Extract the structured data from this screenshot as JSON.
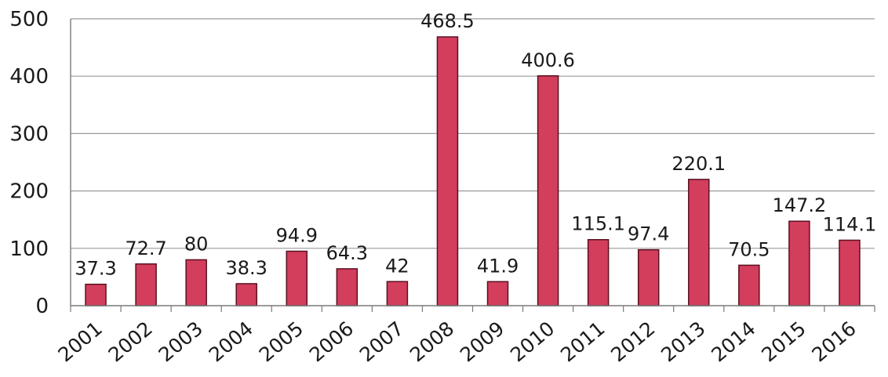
{
  "chart_data": {
    "type": "bar",
    "categories": [
      "2001",
      "2002",
      "2003",
      "2004",
      "2005",
      "2006",
      "2007",
      "2008",
      "2009",
      "2010",
      "2011",
      "2012",
      "2013",
      "2014",
      "2015",
      "2016"
    ],
    "values": [
      37.3,
      72.7,
      80,
      38.3,
      94.9,
      64.3,
      42,
      468.5,
      41.9,
      400.6,
      115.1,
      97.4,
      220.1,
      70.5,
      147.2,
      114.1
    ],
    "data_labels": [
      "37.3",
      "72.7",
      "80",
      "38.3",
      "94.9",
      "64.3",
      "42",
      "468.5",
      "41.9",
      "400.6",
      "115.1",
      "97.4",
      "220.1",
      "70.5",
      "147.2",
      "114.1"
    ],
    "y_ticks": [
      0,
      100,
      200,
      300,
      400,
      500
    ],
    "ylim": [
      0,
      500
    ],
    "grid": true,
    "bar_color": "#d23e5c",
    "bar_edge_color": "#5a1020"
  }
}
